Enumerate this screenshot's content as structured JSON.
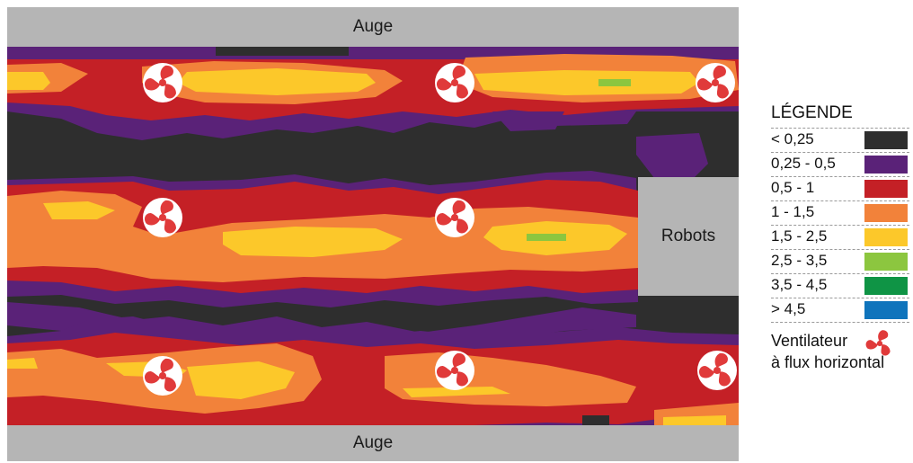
{
  "labels": {
    "trough_top": "Auge",
    "trough_bottom": "Auge",
    "robots": "Robots"
  },
  "legend": {
    "title": "LÉGENDE",
    "items": [
      {
        "label": "< 0,25",
        "color": "#2e2e2e"
      },
      {
        "label": "0,25 - 0,5",
        "color": "#5a2278"
      },
      {
        "label": "0,5 - 1",
        "color": "#c42026"
      },
      {
        "label": "1 - 1,5",
        "color": "#f2823a"
      },
      {
        "label": "1,5 - 2,5",
        "color": "#fcc82a"
      },
      {
        "label": "2,5 - 3,5",
        "color": "#8cc63f"
      },
      {
        "label": "3,5 - 4,5",
        "color": "#0f9445"
      },
      {
        "label": "> 4,5",
        "color": "#0f74bc"
      }
    ],
    "fan_line1": "Ventilateur",
    "fan_line2": "à flux horizontal"
  },
  "colors": {
    "trough": "#b5b5b5",
    "fan": "#e03a3a"
  },
  "fans": 8,
  "icons": {
    "fan": "fan-icon"
  }
}
